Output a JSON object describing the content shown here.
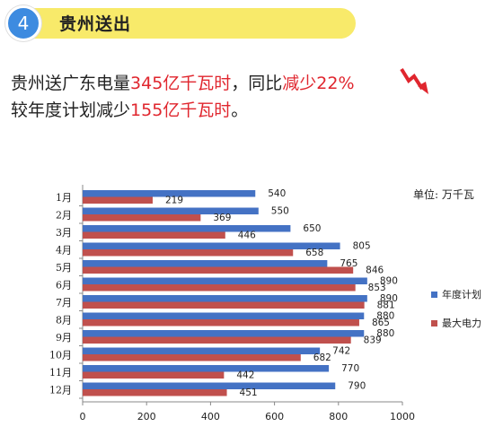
{
  "header": {
    "number": "4",
    "title": "贵州送出"
  },
  "summary": {
    "line1_a": "贵州送广东电量",
    "line1_value": "345亿千瓦时",
    "line1_b": "，同比",
    "line1_change": "减少22%",
    "line2_a": "较年度计划减少",
    "line2_value": "155亿千瓦时",
    "line2_b": "。"
  },
  "colors": {
    "accent_blue": "#4472c4",
    "accent_red": "#c0504d",
    "header_yellow": "#f8ea6a",
    "badge_blue": "#3d8be0",
    "text_red": "#e0262e"
  },
  "chart_data": {
    "type": "bar",
    "orientation": "horizontal",
    "unit": "单位: 万千瓦",
    "categories": [
      "1月",
      "2月",
      "3月",
      "4月",
      "5月",
      "6月",
      "7月",
      "8月",
      "9月",
      "10月",
      "11月",
      "12月"
    ],
    "series": [
      {
        "name": "年度计划",
        "color": "#4472c4",
        "values": [
          540,
          550,
          650,
          805,
          765,
          890,
          890,
          880,
          880,
          742,
          770,
          790
        ]
      },
      {
        "name": "最大电力",
        "color": "#c0504d",
        "values": [
          219,
          369,
          446,
          658,
          846,
          853,
          881,
          865,
          839,
          682,
          442,
          451
        ]
      }
    ],
    "xlim": [
      0,
      1000
    ],
    "xticks": [
      "0",
      "200",
      "400",
      "600",
      "800",
      "1000"
    ],
    "legend_position": "right",
    "grid": false
  }
}
